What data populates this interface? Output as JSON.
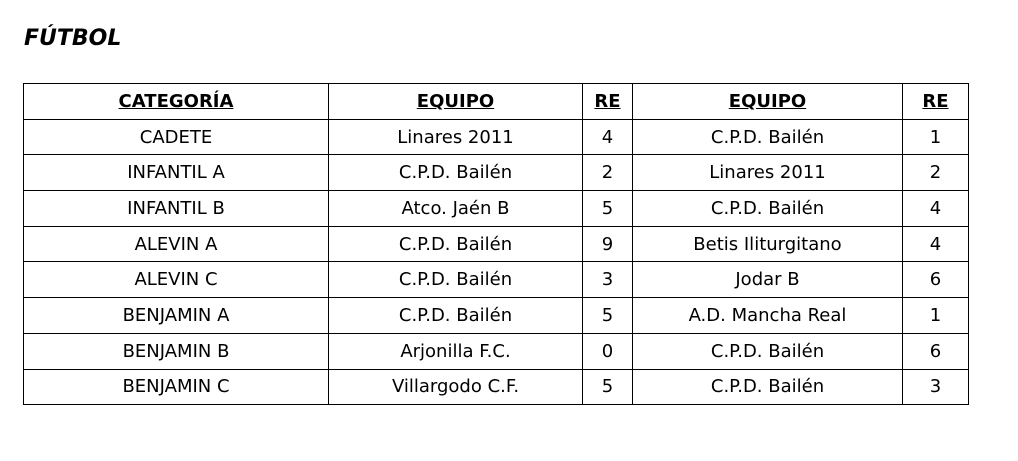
{
  "title": "FÚTBOL",
  "headers": [
    "CATEGORÍA",
    "EQUIPO",
    "RE",
    "EQUIPO",
    "RE"
  ],
  "rows": [
    [
      "CADETE",
      "Linares 2011",
      "4",
      "C.P.D. Bailén",
      "1"
    ],
    [
      "INFANTIL A",
      "C.P.D. Bailén",
      "2",
      "Linares 2011",
      "2"
    ],
    [
      "INFANTIL B",
      "Atco. Jaén B",
      "5",
      "C.P.D. Bailén",
      "4"
    ],
    [
      "ALEVIN A",
      "C.P.D. Bailén",
      "9",
      "Betis Iliturgitano",
      "4"
    ],
    [
      "ALEVIN C",
      "C.P.D. Bailén",
      "3",
      "Jodar B",
      "6"
    ],
    [
      "BENJAMIN A",
      "C.P.D. Bailén",
      "5",
      "A.D. Mancha Real",
      "1"
    ],
    [
      "BENJAMIN B",
      "Arjonilla F.C.",
      "0",
      "C.P.D. Bailén",
      "6"
    ],
    [
      "BENJAMIN C",
      "Villargodo C.F.",
      "5",
      "C.P.D. Bailén",
      "3"
    ]
  ]
}
